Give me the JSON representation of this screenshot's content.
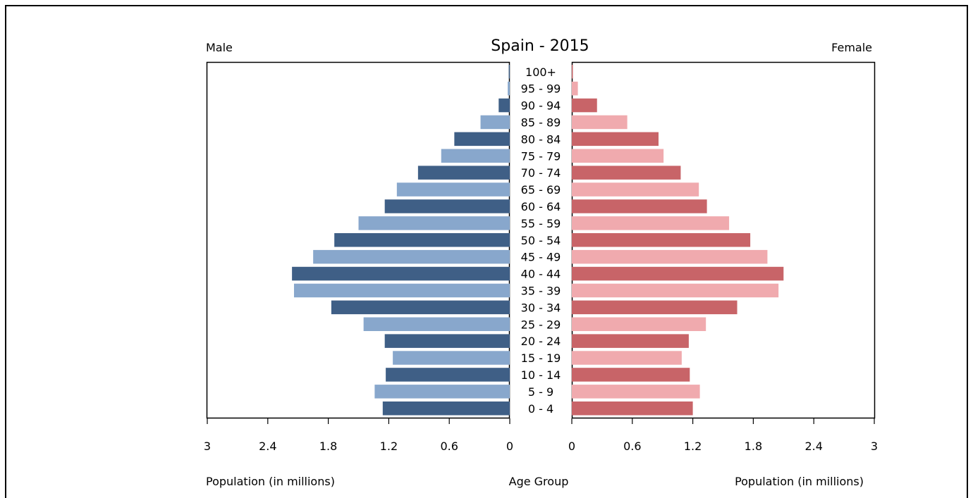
{
  "chart_data": {
    "type": "bar",
    "orientation": "horizontal-population-pyramid",
    "title": "Spain - 2015",
    "left_label": "Male",
    "right_label": "Female",
    "xlabel_left": "Population (in millions)",
    "xlabel_right": "Population (in millions)",
    "center_label": "Age Group",
    "xlim": [
      0,
      3
    ],
    "ticks": [
      "0",
      "0.6",
      "1.2",
      "1.8",
      "2.4",
      "3"
    ],
    "categories": [
      "100+",
      "95 - 99",
      "90 - 94",
      "85 - 89",
      "80 - 84",
      "75 - 79",
      "70 - 74",
      "65 - 69",
      "60 - 64",
      "55 - 59",
      "50 - 54",
      "45 - 49",
      "40 - 44",
      "35 - 39",
      "30 - 34",
      "25 - 29",
      "20 - 24",
      "15 - 19",
      "10 - 14",
      "5 - 9",
      "0 - 4"
    ],
    "series": [
      {
        "name": "Male",
        "values": [
          0.01,
          0.02,
          0.11,
          0.29,
          0.55,
          0.68,
          0.91,
          1.12,
          1.24,
          1.5,
          1.74,
          1.95,
          2.16,
          2.14,
          1.77,
          1.45,
          1.24,
          1.16,
          1.23,
          1.34,
          1.26
        ],
        "colors": [
          "#3f5f86",
          "#88a7cc"
        ]
      },
      {
        "name": "Female",
        "values": [
          0.01,
          0.06,
          0.25,
          0.55,
          0.86,
          0.91,
          1.08,
          1.26,
          1.34,
          1.56,
          1.77,
          1.94,
          2.1,
          2.05,
          1.64,
          1.33,
          1.16,
          1.09,
          1.17,
          1.27,
          1.2
        ],
        "colors": [
          "#c86468",
          "#f0aaae"
        ]
      }
    ],
    "grid": false
  }
}
